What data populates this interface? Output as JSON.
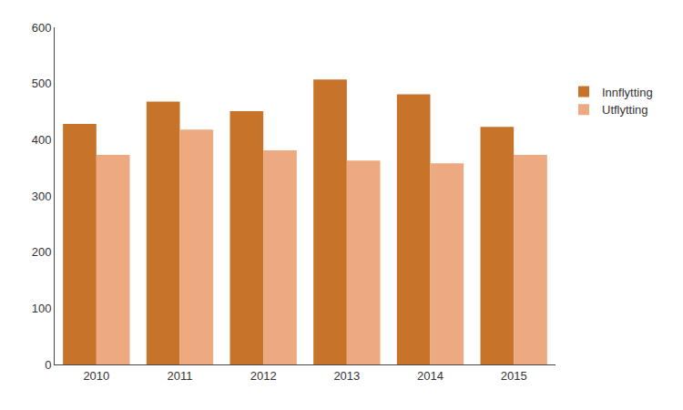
{
  "chart_data": {
    "type": "bar",
    "categories": [
      "2010",
      "2011",
      "2012",
      "2013",
      "2014",
      "2015"
    ],
    "series": [
      {
        "name": "Innflytting",
        "color": "#C8732A",
        "values": [
          428,
          468,
          451,
          507,
          481,
          423
        ]
      },
      {
        "name": "Utflytting",
        "color": "#EDAA80",
        "values": [
          373,
          418,
          381,
          363,
          358,
          373
        ]
      }
    ],
    "ylim": [
      0,
      600
    ],
    "yticks": [
      0,
      100,
      200,
      300,
      400,
      500,
      600
    ],
    "grid": false,
    "legend": "right"
  }
}
